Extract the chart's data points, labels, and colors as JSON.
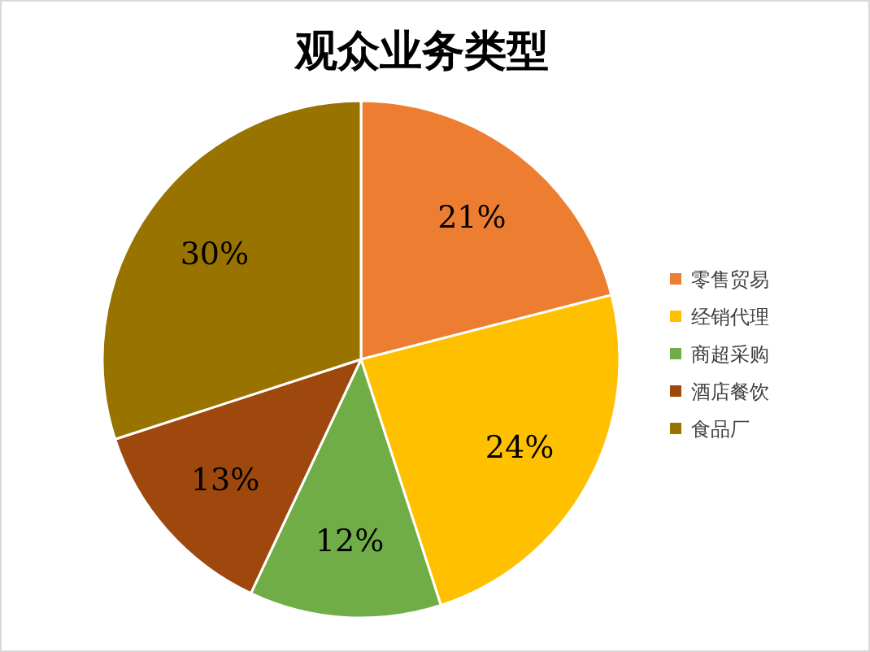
{
  "chart_data": {
    "type": "pie",
    "title": "观众业务类型",
    "categories": [
      "零售贸易",
      "经销代理",
      "商超采购",
      "酒店餐饮",
      "食品厂"
    ],
    "values": [
      21,
      24,
      12,
      13,
      30
    ],
    "colors": [
      "#ed7d31",
      "#ffc000",
      "#70ad47",
      "#9e480e",
      "#997300"
    ],
    "value_labels": [
      "21%",
      "24%",
      "12%",
      "13%",
      "30%"
    ],
    "legend": "right"
  }
}
